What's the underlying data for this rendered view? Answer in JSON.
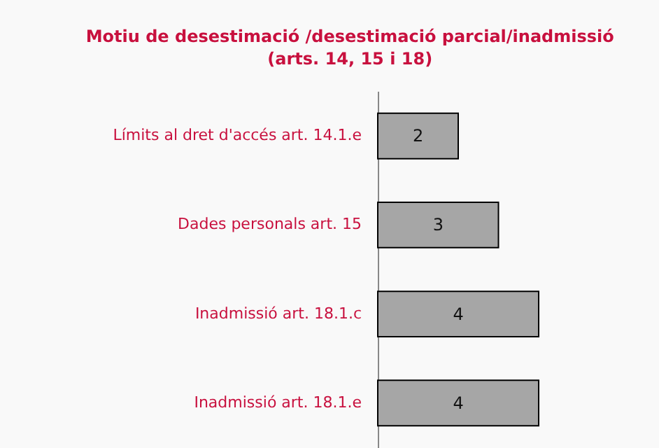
{
  "chart_data": {
    "type": "bar",
    "orientation": "horizontal",
    "title": "Motiu de desestimació /desestimació parcial/inadmissió",
    "subtitle": "(arts. 14,  15 i 18)",
    "categories": [
      "Límits al dret d'accés art. 14.1.e",
      "Dades personals art. 15",
      "Inadmissió art. 18.1.c",
      "Inadmissió art. 18.1.e"
    ],
    "values": [
      2,
      3,
      4,
      4
    ],
    "color": "#a6a6a6",
    "data_labels": true
  }
}
